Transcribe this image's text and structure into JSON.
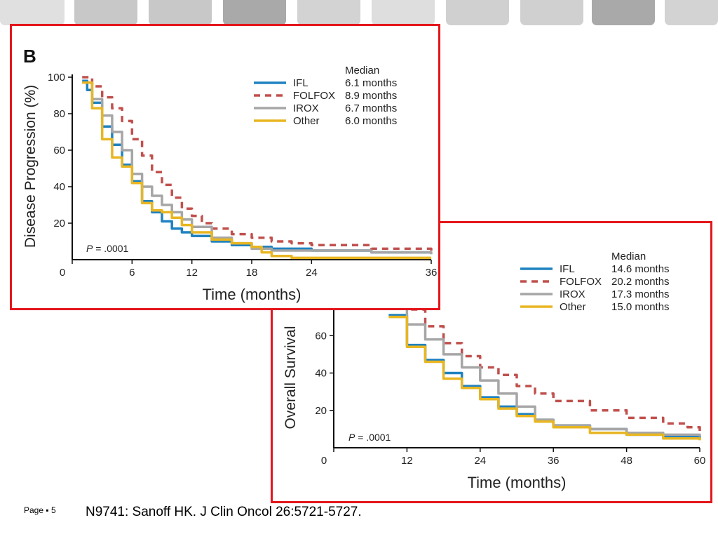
{
  "theme": {
    "frame_color": "#e4161b",
    "tab_colors": [
      "#e0e0e0",
      "#c8c8c8",
      "#c8c8c8",
      "#a9a9a9",
      "#d3d3d3",
      "#dedede",
      "#d0d0d0",
      "#d0d0d0",
      "#a9a9a9",
      "#d3d3d3"
    ]
  },
  "footer": {
    "page_label": "Page ▪ 5",
    "citation": "N9741: Sanoff HK. J Clin Oncol 26:5721-5727."
  },
  "chart_data": [
    {
      "id": "panel-b",
      "type": "line",
      "panel_label": "B",
      "xlabel": "Time (months)",
      "ylabel": "Disease Progression (%)",
      "xlim": [
        0,
        36
      ],
      "ylim": [
        0,
        100
      ],
      "xticks": [
        0,
        6,
        12,
        18,
        24,
        36
      ],
      "yticks": [
        20,
        40,
        60,
        80,
        100
      ],
      "annotation": "P = .0001",
      "legend_position": "top-right",
      "legend_header": "Median",
      "series": [
        {
          "name": "IFL",
          "median": "6.1 months",
          "color": "#1f82c0",
          "dash": "",
          "x": [
            1,
            1.5,
            2,
            3,
            4,
            5,
            6,
            7,
            8,
            9,
            10,
            11,
            12,
            14,
            16,
            18,
            20,
            22,
            24,
            30,
            36
          ],
          "y": [
            98,
            93,
            86,
            73,
            63,
            52,
            43,
            32,
            26,
            21,
            17,
            15,
            13,
            10,
            8,
            7,
            6,
            6,
            5,
            4,
            4
          ]
        },
        {
          "name": "FOLFOX",
          "median": "8.9 months",
          "color": "#c0504d",
          "dash": "9,7",
          "x": [
            1,
            2,
            3,
            4,
            5,
            6,
            7,
            8,
            9,
            10,
            11,
            12,
            13,
            14,
            16,
            18,
            20,
            22,
            24,
            30,
            36
          ],
          "y": [
            100,
            95,
            89,
            83,
            76,
            66,
            57,
            48,
            41,
            34,
            28,
            24,
            20,
            17,
            14,
            12,
            10,
            9,
            8,
            6,
            4
          ]
        },
        {
          "name": "IROX",
          "median": "6.7 months",
          "color": "#a6a6a6",
          "dash": "",
          "x": [
            1,
            2,
            3,
            4,
            5,
            6,
            7,
            8,
            9,
            10,
            11,
            12,
            14,
            16,
            18,
            20,
            22,
            24,
            30,
            36
          ],
          "y": [
            97,
            88,
            79,
            70,
            60,
            47,
            40,
            35,
            30,
            26,
            22,
            18,
            12,
            9,
            6,
            5,
            5,
            5,
            4,
            3
          ]
        },
        {
          "name": "Other",
          "median": "6.0 months",
          "color": "#e8b622",
          "dash": "",
          "x": [
            1,
            2,
            3,
            4,
            5,
            6,
            7,
            8,
            9,
            10,
            11,
            12,
            14,
            16,
            18,
            19,
            20,
            22,
            24,
            30,
            36
          ],
          "y": [
            97,
            83,
            66,
            56,
            51,
            42,
            31,
            27,
            26,
            23,
            19,
            15,
            11,
            9,
            7,
            4,
            2,
            1,
            1,
            1,
            1
          ]
        }
      ]
    },
    {
      "id": "panel-a",
      "type": "line",
      "xlabel": "Time (months)",
      "ylabel": "Overall Survival",
      "xlim": [
        0,
        60
      ],
      "ylim": [
        0,
        80
      ],
      "xticks": [
        0,
        12,
        24,
        36,
        48,
        60
      ],
      "yticks": [
        20,
        40,
        60
      ],
      "annotation": "P = .0001",
      "legend_position": "top-right",
      "legend_header": "Median",
      "series": [
        {
          "name": "IFL",
          "median": "14.6 months",
          "color": "#1f82c0",
          "dash": "",
          "x": [
            9,
            12,
            15,
            18,
            21,
            24,
            27,
            30,
            33,
            36,
            42,
            48,
            54,
            60
          ],
          "y": [
            71,
            55,
            47,
            40,
            33,
            27,
            22,
            18,
            15,
            12,
            10,
            7,
            6,
            5
          ]
        },
        {
          "name": "FOLFOX",
          "median": "20.2 months",
          "color": "#c0504d",
          "dash": "9,7",
          "x": [
            9,
            12,
            15,
            18,
            21,
            24,
            27,
            30,
            33,
            36,
            42,
            48,
            54,
            58,
            60
          ],
          "y": [
            80,
            74,
            65,
            56,
            49,
            43,
            39,
            33,
            29,
            25,
            20,
            16,
            13,
            11,
            9
          ]
        },
        {
          "name": "IROX",
          "median": "17.3 months",
          "color": "#a6a6a6",
          "dash": "",
          "x": [
            9,
            12,
            15,
            18,
            21,
            24,
            27,
            30,
            33,
            36,
            42,
            48,
            54,
            60
          ],
          "y": [
            79,
            66,
            58,
            50,
            43,
            36,
            29,
            22,
            15,
            12,
            10,
            8,
            7,
            6
          ]
        },
        {
          "name": "Other",
          "median": "15.0 months",
          "color": "#e8b622",
          "dash": "",
          "x": [
            9,
            12,
            15,
            18,
            21,
            24,
            27,
            30,
            33,
            36,
            42,
            48,
            54,
            60
          ],
          "y": [
            70,
            54,
            46,
            37,
            32,
            26,
            21,
            17,
            14,
            11,
            8,
            7,
            5,
            4
          ]
        }
      ]
    }
  ]
}
